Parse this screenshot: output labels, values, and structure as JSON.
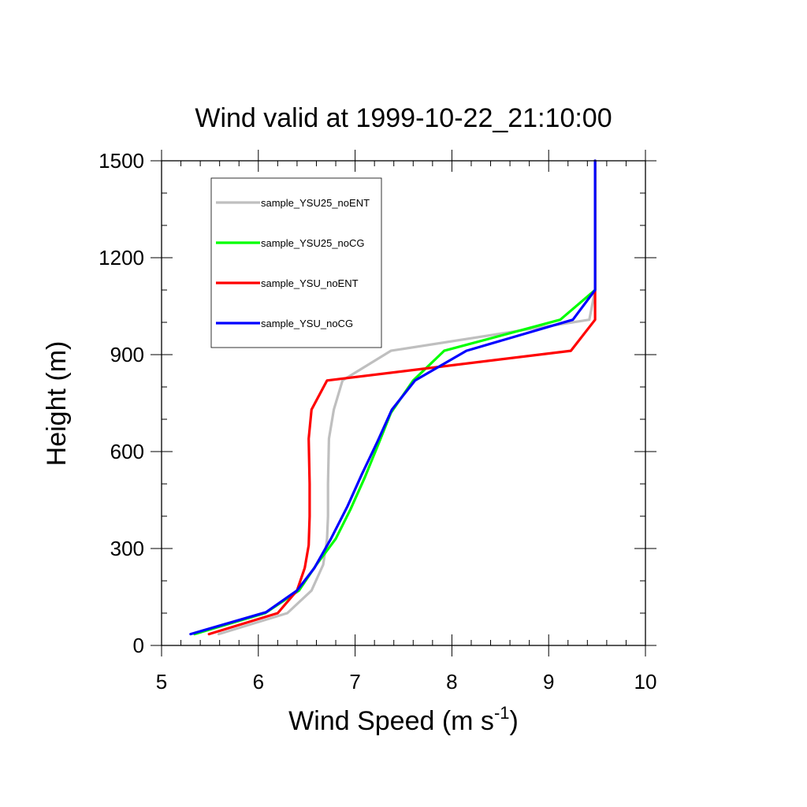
{
  "chart_data": {
    "type": "line",
    "title": "Wind valid at 1999-10-22_21:10:00",
    "xlabel": "Wind Speed (m s",
    "xlabel_sup": "-1",
    "xlabel_end": ")",
    "ylabel": "Height (m)",
    "xlim": [
      5,
      10
    ],
    "ylim": [
      0,
      1500
    ],
    "x_ticks": [
      "5",
      "6",
      "7",
      "8",
      "9",
      "10"
    ],
    "y_ticks": [
      "0",
      "300",
      "600",
      "900",
      "1200",
      "1500"
    ],
    "grid": false,
    "legend_position": "top-left",
    "series": [
      {
        "name": "sample_YSU25_noENT",
        "color": "#bfbfbf",
        "points": [
          [
            5.59,
            35
          ],
          [
            6.3,
            100
          ],
          [
            6.55,
            170
          ],
          [
            6.67,
            250
          ],
          [
            6.71,
            330
          ],
          [
            6.72,
            400
          ],
          [
            6.72,
            500
          ],
          [
            6.73,
            640
          ],
          [
            6.78,
            730
          ],
          [
            6.87,
            820
          ],
          [
            7.37,
            912
          ],
          [
            9.42,
            1008
          ],
          [
            9.48,
            1100
          ],
          [
            9.48,
            1200
          ],
          [
            9.48,
            1500
          ]
        ]
      },
      {
        "name": "sample_YSU25_noCG",
        "color": "#00ff00",
        "points": [
          [
            5.34,
            35
          ],
          [
            6.07,
            100
          ],
          [
            6.42,
            170
          ],
          [
            6.6,
            250
          ],
          [
            6.8,
            330
          ],
          [
            6.95,
            420
          ],
          [
            7.1,
            520
          ],
          [
            7.25,
            630
          ],
          [
            7.37,
            720
          ],
          [
            7.6,
            820
          ],
          [
            7.92,
            912
          ],
          [
            9.12,
            1008
          ],
          [
            9.48,
            1100
          ],
          [
            9.48,
            1200
          ],
          [
            9.48,
            1500
          ]
        ]
      },
      {
        "name": "sample_YSU_noENT",
        "color": "#ff0000",
        "points": [
          [
            5.49,
            35
          ],
          [
            6.2,
            100
          ],
          [
            6.4,
            170
          ],
          [
            6.48,
            240
          ],
          [
            6.52,
            310
          ],
          [
            6.53,
            400
          ],
          [
            6.53,
            500
          ],
          [
            6.52,
            640
          ],
          [
            6.55,
            730
          ],
          [
            6.71,
            820
          ],
          [
            9.23,
            912
          ],
          [
            9.48,
            1008
          ],
          [
            9.48,
            1100
          ],
          [
            9.48,
            1200
          ],
          [
            9.48,
            1500
          ]
        ]
      },
      {
        "name": "sample_YSU_noCG",
        "color": "#0000ff",
        "points": [
          [
            5.3,
            35
          ],
          [
            6.08,
            103
          ],
          [
            6.4,
            170
          ],
          [
            6.58,
            240
          ],
          [
            6.75,
            330
          ],
          [
            6.92,
            430
          ],
          [
            7.07,
            530
          ],
          [
            7.23,
            630
          ],
          [
            7.38,
            730
          ],
          [
            7.62,
            820
          ],
          [
            8.15,
            912
          ],
          [
            9.25,
            1008
          ],
          [
            9.48,
            1100
          ],
          [
            9.48,
            1200
          ],
          [
            9.48,
            1500
          ]
        ]
      }
    ]
  }
}
